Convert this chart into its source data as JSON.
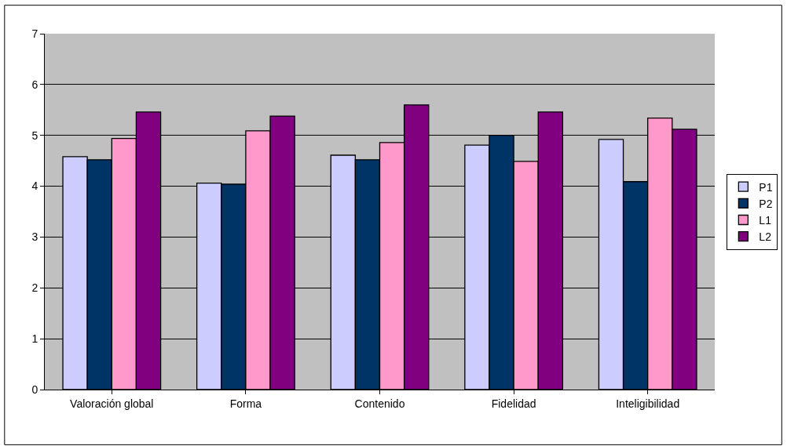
{
  "chart_data": {
    "type": "bar",
    "categories": [
      "Valoración global",
      "Forma",
      "Contenido",
      "Fidelidad",
      "Inteligibilidad"
    ],
    "series": [
      {
        "name": "P1",
        "color": "#ccccff",
        "values": [
          4.58,
          4.06,
          4.61,
          4.81,
          4.92
        ]
      },
      {
        "name": "P2",
        "color": "#003366",
        "values": [
          4.52,
          4.04,
          4.52,
          5.0,
          4.09
        ]
      },
      {
        "name": "L1",
        "color": "#ff99cc",
        "values": [
          4.94,
          5.09,
          4.86,
          4.49,
          5.34
        ]
      },
      {
        "name": "L2",
        "color": "#800080",
        "values": [
          5.46,
          5.38,
          5.6,
          5.46,
          5.12
        ]
      }
    ],
    "ylim": [
      0,
      7
    ],
    "yticks": [
      0,
      1,
      2,
      3,
      4,
      5,
      6,
      7
    ],
    "grid": "y",
    "legend": "right"
  }
}
